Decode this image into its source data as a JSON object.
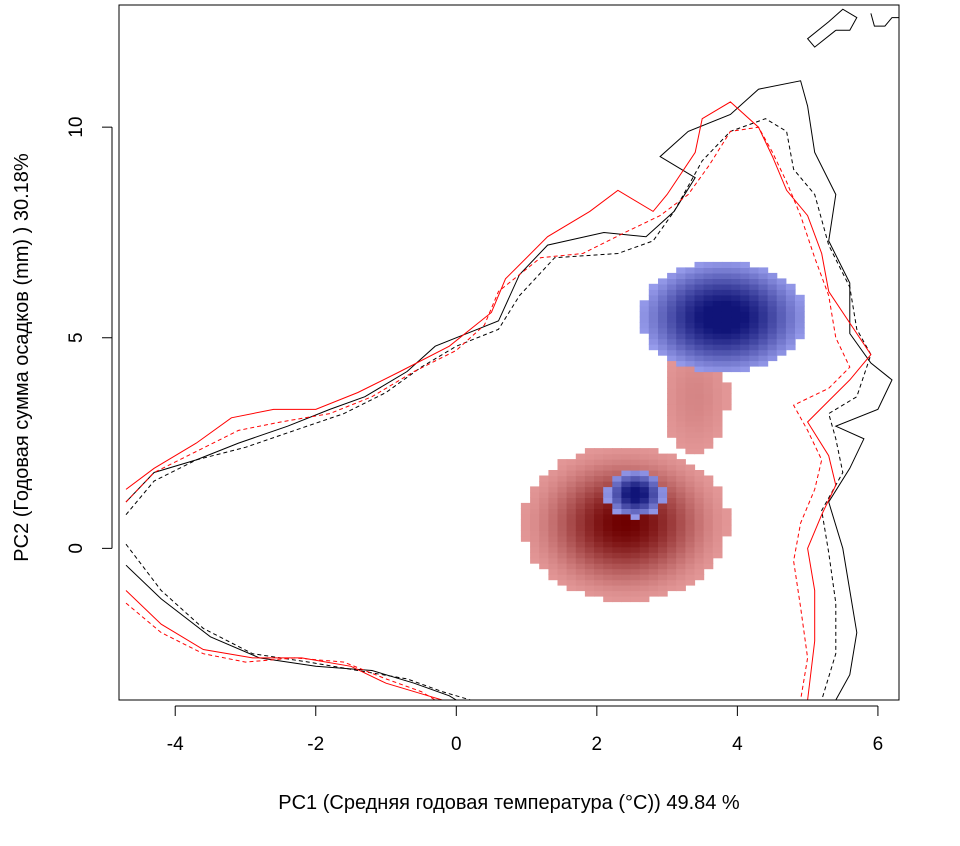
{
  "chart_data": {
    "type": "heatmap",
    "title": "",
    "xlabel": "PC1 (Средняя годовая температура (°C)) 49.84 %",
    "ylabel": "PC2 (Годовая сумма осадков  (mm) ) 30.18%",
    "xlim": [
      -4.8,
      6.3
    ],
    "ylim": [
      -3.6,
      12.9
    ],
    "xticks": [
      -4,
      -2,
      0,
      2,
      4,
      6
    ],
    "yticks": [
      0,
      5,
      10
    ],
    "grid": false,
    "legend": "none",
    "colors": {
      "red_density": "#d34a4a",
      "blue_density": "#5860d8",
      "line_black": "#000000",
      "line_red": "#ff0000"
    },
    "density_layers": [
      {
        "name": "red",
        "color": "#c85050",
        "blobs": [
          {
            "x": 2.4,
            "y": 0.6,
            "sx": 1.0,
            "sy": 1.25,
            "peak": 1.0
          },
          {
            "x": 3.4,
            "y": 3.6,
            "sx": 0.55,
            "sy": 1.6,
            "peak": 0.48
          },
          {
            "x": 3.8,
            "y": 5.6,
            "sx": 1.0,
            "sy": 1.2,
            "peak": 0.5
          }
        ],
        "threshold": 0.34
      },
      {
        "name": "blue",
        "color": "#4c56d0",
        "blobs": [
          {
            "x": 3.8,
            "y": 5.5,
            "sx": 0.9,
            "sy": 1.0,
            "peak": 1.0
          },
          {
            "x": 2.55,
            "y": 1.3,
            "sx": 0.32,
            "sy": 0.42,
            "peak": 1.0
          }
        ],
        "threshold": 0.42
      }
    ],
    "contours": [
      {
        "color": "#000000",
        "dash": "solid",
        "points": [
          [
            -4.7,
            1.1
          ],
          [
            -4.3,
            1.8
          ],
          [
            -3.7,
            2.1
          ],
          [
            -3.1,
            2.5
          ],
          [
            -2.4,
            2.9
          ],
          [
            -1.8,
            3.3
          ],
          [
            -1.3,
            3.6
          ],
          [
            -0.7,
            4.2
          ],
          [
            -0.3,
            4.8
          ],
          [
            0.3,
            5.2
          ],
          [
            0.6,
            5.4
          ],
          [
            0.9,
            6.5
          ],
          [
            1.3,
            7.2
          ],
          [
            2.1,
            7.5
          ],
          [
            2.7,
            7.4
          ],
          [
            3.1,
            8.0
          ],
          [
            3.4,
            8.8
          ],
          [
            2.9,
            9.3
          ],
          [
            3.3,
            9.9
          ],
          [
            3.9,
            10.3
          ],
          [
            4.3,
            10.9
          ],
          [
            4.9,
            11.1
          ],
          [
            5.0,
            10.5
          ],
          [
            5.1,
            9.4
          ],
          [
            5.4,
            8.4
          ],
          [
            5.3,
            7.3
          ],
          [
            5.6,
            6.3
          ],
          [
            5.6,
            5.1
          ],
          [
            5.9,
            4.4
          ],
          [
            6.2,
            4.0
          ],
          [
            6.0,
            3.3
          ],
          [
            5.4,
            2.9
          ],
          [
            5.8,
            2.6
          ],
          [
            5.6,
            1.9
          ],
          [
            5.3,
            1.1
          ],
          [
            5.5,
            0.0
          ],
          [
            5.6,
            -1.0
          ],
          [
            5.7,
            -2.0
          ],
          [
            5.6,
            -3.0
          ],
          [
            5.4,
            -3.6
          ]
        ]
      },
      {
        "color": "#000000",
        "dash": "dashed",
        "points": [
          [
            -4.7,
            0.8
          ],
          [
            -4.3,
            1.6
          ],
          [
            -3.7,
            2.1
          ],
          [
            -3.0,
            2.4
          ],
          [
            -2.3,
            2.8
          ],
          [
            -1.6,
            3.2
          ],
          [
            -1.0,
            3.7
          ],
          [
            -0.5,
            4.3
          ],
          [
            0.0,
            4.8
          ],
          [
            0.6,
            5.2
          ],
          [
            0.9,
            6.0
          ],
          [
            1.4,
            6.9
          ],
          [
            2.3,
            7.0
          ],
          [
            2.8,
            7.3
          ],
          [
            3.1,
            8.0
          ],
          [
            3.3,
            8.6
          ],
          [
            3.5,
            9.2
          ],
          [
            3.9,
            9.9
          ],
          [
            4.4,
            10.2
          ],
          [
            4.7,
            9.9
          ],
          [
            4.8,
            9.0
          ],
          [
            5.1,
            8.4
          ],
          [
            5.3,
            7.2
          ],
          [
            5.6,
            6.2
          ],
          [
            5.7,
            5.2
          ],
          [
            5.9,
            4.6
          ],
          [
            5.7,
            3.6
          ],
          [
            5.3,
            3.2
          ],
          [
            5.4,
            2.6
          ],
          [
            5.5,
            1.8
          ],
          [
            5.2,
            0.9
          ],
          [
            5.3,
            -0.1
          ],
          [
            5.4,
            -1.3
          ],
          [
            5.4,
            -2.5
          ],
          [
            5.2,
            -3.6
          ]
        ]
      },
      {
        "color": "#ff0000",
        "dash": "solid",
        "points": [
          [
            -4.7,
            1.4
          ],
          [
            -4.3,
            1.9
          ],
          [
            -3.7,
            2.5
          ],
          [
            -3.2,
            3.1
          ],
          [
            -2.6,
            3.3
          ],
          [
            -2.0,
            3.3
          ],
          [
            -1.4,
            3.7
          ],
          [
            -0.8,
            4.2
          ],
          [
            -0.1,
            4.8
          ],
          [
            0.5,
            5.6
          ],
          [
            0.7,
            6.4
          ],
          [
            1.3,
            7.4
          ],
          [
            1.9,
            8.0
          ],
          [
            2.3,
            8.5
          ],
          [
            2.8,
            8.0
          ],
          [
            3.0,
            8.4
          ],
          [
            3.4,
            9.4
          ],
          [
            3.5,
            10.2
          ],
          [
            3.9,
            10.6
          ],
          [
            4.3,
            10.0
          ],
          [
            4.5,
            9.3
          ],
          [
            4.7,
            8.5
          ],
          [
            5.0,
            7.9
          ],
          [
            5.2,
            7.0
          ],
          [
            5.3,
            6.1
          ],
          [
            5.7,
            5.1
          ],
          [
            5.9,
            4.6
          ],
          [
            5.6,
            4.0
          ],
          [
            5.3,
            3.5
          ],
          [
            5.0,
            3.0
          ],
          [
            5.3,
            2.2
          ],
          [
            5.4,
            1.5
          ],
          [
            5.2,
            0.8
          ],
          [
            5.0,
            0.0
          ],
          [
            5.1,
            -1.0
          ],
          [
            5.1,
            -2.2
          ],
          [
            5.0,
            -3.6
          ]
        ]
      },
      {
        "color": "#ff0000",
        "dash": "dashed",
        "points": [
          [
            -4.7,
            1.1
          ],
          [
            -4.3,
            1.8
          ],
          [
            -3.7,
            2.3
          ],
          [
            -3.1,
            2.8
          ],
          [
            -2.5,
            3.0
          ],
          [
            -1.8,
            3.2
          ],
          [
            -1.2,
            3.6
          ],
          [
            -0.6,
            4.2
          ],
          [
            0.0,
            4.7
          ],
          [
            0.4,
            5.3
          ],
          [
            0.6,
            6.1
          ],
          [
            1.2,
            6.9
          ],
          [
            1.8,
            7.0
          ],
          [
            2.4,
            7.5
          ],
          [
            2.9,
            7.9
          ],
          [
            3.3,
            8.4
          ],
          [
            3.6,
            9.1
          ],
          [
            3.9,
            9.9
          ],
          [
            4.3,
            10.0
          ],
          [
            4.5,
            9.4
          ],
          [
            4.7,
            8.7
          ],
          [
            4.9,
            7.9
          ],
          [
            5.1,
            6.9
          ],
          [
            5.3,
            6.0
          ],
          [
            5.4,
            5.0
          ],
          [
            5.6,
            4.3
          ],
          [
            5.3,
            3.8
          ],
          [
            4.8,
            3.4
          ],
          [
            5.0,
            2.8
          ],
          [
            5.2,
            2.1
          ],
          [
            5.1,
            1.4
          ],
          [
            4.9,
            0.6
          ],
          [
            4.8,
            -0.3
          ],
          [
            4.9,
            -1.4
          ],
          [
            5.0,
            -2.6
          ],
          [
            4.9,
            -3.6
          ]
        ]
      },
      {
        "color": "#000000",
        "dash": "solid",
        "points": [
          [
            -4.7,
            -0.4
          ],
          [
            -4.2,
            -1.2
          ],
          [
            -3.5,
            -2.1
          ],
          [
            -2.8,
            -2.6
          ],
          [
            -2.0,
            -2.8
          ],
          [
            -1.2,
            -2.9
          ],
          [
            -0.6,
            -3.2
          ],
          [
            -0.1,
            -3.5
          ],
          [
            0.0,
            -3.6
          ]
        ]
      },
      {
        "color": "#000000",
        "dash": "dashed",
        "points": [
          [
            -4.7,
            0.1
          ],
          [
            -4.2,
            -1.0
          ],
          [
            -3.6,
            -1.9
          ],
          [
            -2.9,
            -2.5
          ],
          [
            -2.1,
            -2.7
          ],
          [
            -1.4,
            -2.9
          ],
          [
            -0.7,
            -3.1
          ],
          [
            -0.2,
            -3.4
          ],
          [
            0.2,
            -3.6
          ]
        ]
      },
      {
        "color": "#ff0000",
        "dash": "solid",
        "points": [
          [
            -4.7,
            -1.0
          ],
          [
            -4.2,
            -1.8
          ],
          [
            -3.6,
            -2.4
          ],
          [
            -2.9,
            -2.6
          ],
          [
            -2.2,
            -2.6
          ],
          [
            -1.5,
            -2.8
          ],
          [
            -1.0,
            -3.2
          ],
          [
            -0.4,
            -3.5
          ],
          [
            -0.2,
            -3.6
          ]
        ]
      },
      {
        "color": "#ff0000",
        "dash": "dashed",
        "points": [
          [
            -4.7,
            -1.3
          ],
          [
            -4.2,
            -2.0
          ],
          [
            -3.6,
            -2.5
          ],
          [
            -3.0,
            -2.7
          ],
          [
            -2.3,
            -2.6
          ],
          [
            -1.6,
            -2.7
          ],
          [
            -1.0,
            -3.1
          ],
          [
            -0.5,
            -3.4
          ],
          [
            -0.3,
            -3.6
          ]
        ]
      },
      {
        "color": "#000000",
        "dash": "solid",
        "points": [
          [
            5.4,
            12.3
          ],
          [
            5.6,
            12.3
          ],
          [
            5.7,
            12.6
          ],
          [
            5.5,
            12.8
          ],
          [
            5.3,
            12.5
          ],
          [
            5.0,
            12.1
          ],
          [
            5.1,
            11.9
          ],
          [
            5.4,
            12.3
          ]
        ]
      },
      {
        "color": "#000000",
        "dash": "solid",
        "points": [
          [
            5.9,
            12.7
          ],
          [
            5.95,
            12.4
          ],
          [
            6.1,
            12.4
          ],
          [
            6.2,
            12.6
          ],
          [
            6.3,
            12.6
          ]
        ]
      }
    ]
  }
}
